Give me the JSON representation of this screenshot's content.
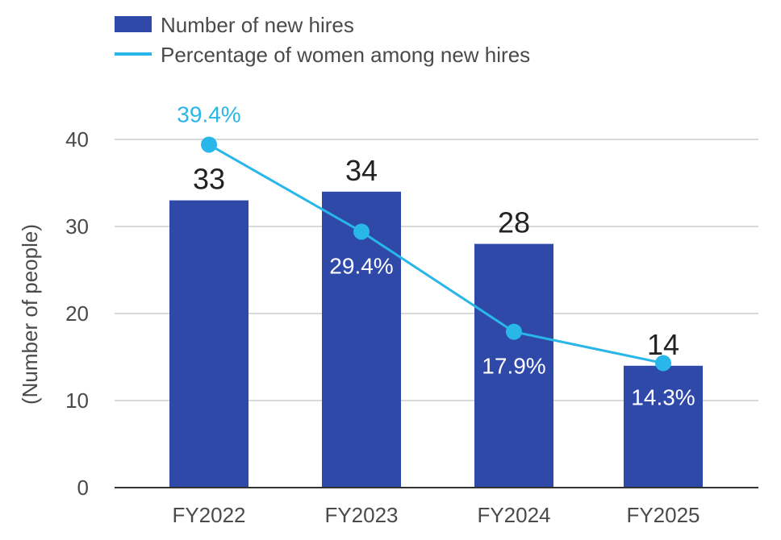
{
  "chart_data": {
    "type": "bar",
    "categories": [
      "FY2022",
      "FY2023",
      "FY2024",
      "FY2025"
    ],
    "series": [
      {
        "name": "Number of new hires",
        "type": "bar",
        "values": [
          33,
          34,
          28,
          14
        ],
        "value_labels": [
          "33",
          "34",
          "28",
          "14"
        ],
        "color": "#2f49a8"
      },
      {
        "name": "Percentage of women among new hires",
        "type": "line",
        "values": [
          39.4,
          29.4,
          17.9,
          14.3
        ],
        "value_labels": [
          "39.4%",
          "29.4%",
          "17.9%",
          "14.3%"
        ],
        "color": "#29b6e8"
      }
    ],
    "title": "",
    "xlabel": "",
    "ylabel": "(Number of people)",
    "ylim": [
      0,
      40
    ],
    "yticks": [
      0,
      10,
      20,
      30,
      40
    ],
    "ytick_labels": [
      "0",
      "10",
      "20",
      "30",
      "40"
    ],
    "grid": true,
    "legend_position": "top-left"
  },
  "colors": {
    "bar": "#2f49a8",
    "line": "#29b6e8",
    "grid": "#d9d9d9",
    "axis": "#333333",
    "inside_label": "#ffffff"
  }
}
